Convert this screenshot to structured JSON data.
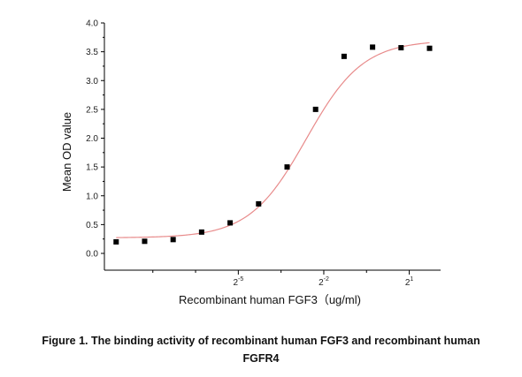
{
  "chart_data": {
    "type": "scatter",
    "xlabel": "Recombinant human  FGF3（ug/ml)",
    "ylabel": "Mean OD value",
    "ylim": [
      0,
      4.0
    ],
    "yticks": [
      "0.0",
      "0.5",
      "1.0",
      "1.5",
      "2.0",
      "2.5",
      "3.0",
      "3.5",
      "4.0"
    ],
    "xscale": "log2",
    "xlim_log2": [
      -9.7,
      2.1
    ],
    "xticks": [
      {
        "base": "2",
        "exp": "-5",
        "value": 0.03125
      },
      {
        "base": "2",
        "exp": "-2",
        "value": 0.25
      },
      {
        "base": "2",
        "exp": "1",
        "value": 2
      }
    ],
    "series": [
      {
        "marker": "square",
        "color": "#000000",
        "x": [
          0.0016,
          0.0032,
          0.0064,
          0.0128,
          0.0256,
          0.0512,
          0.1024,
          0.2048,
          0.4096,
          0.8192,
          1.6384,
          3.2768
        ],
        "y": [
          0.2,
          0.21,
          0.24,
          0.37,
          0.53,
          0.86,
          1.5,
          2.5,
          3.42,
          3.58,
          3.57,
          3.56
        ]
      }
    ],
    "fit": {
      "type": "4PL",
      "color": "#e88b8b",
      "bottom": 0.27,
      "top": 3.7,
      "ec50": 0.163,
      "hill": 1.45
    },
    "grid": false,
    "legend": false
  },
  "caption": {
    "line1": "Figure 1. The binding activity of recombinant human FGF3 and recombinant human",
    "line2": "FGFR4"
  }
}
